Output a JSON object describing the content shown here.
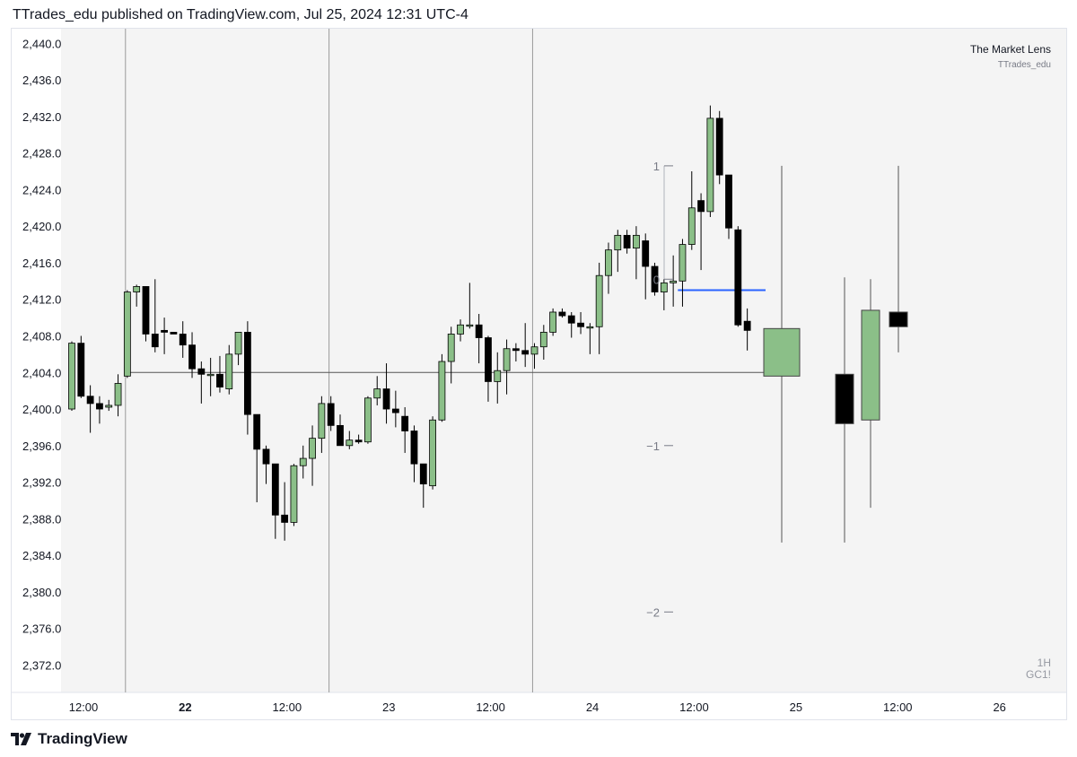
{
  "header": {
    "publisher_line": "TTrades_edu published on TradingView.com, Jul 25, 2024 12:31 UTC-4"
  },
  "watermark": {
    "title": "The Market Lens",
    "author": "TTrades_edu",
    "interval": "1H",
    "symbol": "GC1!"
  },
  "footer": {
    "brand": "TradingView",
    "logo_icon": "tradingview-logo-icon"
  },
  "colors": {
    "bull": "#8bbf88",
    "bear": "#000000",
    "wick": "#000000",
    "blue_line": "#2962ff",
    "pane_bg": "#f4f4f4",
    "grid": "#9a9a9a"
  },
  "chart_data": {
    "type": "candlestick",
    "ylim": [
      2369.0,
      2441.6
    ],
    "y_ticks": [
      2440,
      2436,
      2432,
      2428,
      2424,
      2420,
      2416,
      2412,
      2408,
      2404,
      2400,
      2396,
      2392,
      2388,
      2384,
      2380,
      2376,
      2372
    ],
    "y_tick_labels": [
      "2,440.0",
      "2,436.0",
      "2,432.0",
      "2,428.0",
      "2,424.0",
      "2,420.0",
      "2,416.0",
      "2,412.0",
      "2,408.0",
      "2,404.0",
      "2,400.0",
      "2,396.0",
      "2,392.0",
      "2,388.0",
      "2,384.0",
      "2,380.0",
      "2,376.0",
      "2,372.0"
    ],
    "x_labels": [
      {
        "label": "12:00",
        "idx": 0,
        "bold": false
      },
      {
        "label": "22",
        "idx": 11,
        "bold": true
      },
      {
        "label": "12:00",
        "idx": 22,
        "bold": false
      },
      {
        "label": "23",
        "idx": 33,
        "bold": false
      },
      {
        "label": "12:00",
        "idx": 44,
        "bold": false
      },
      {
        "label": "24",
        "idx": 55,
        "bold": false
      },
      {
        "label": "12:00",
        "idx": 66,
        "bold": false
      },
      {
        "label": "25",
        "idx": 77,
        "bold": false
      },
      {
        "label": "12:00",
        "idx": 88,
        "bold": false
      },
      {
        "label": "26",
        "idx": 99,
        "bold": false
      }
    ],
    "session_separators": [
      5.8,
      27.8,
      49.8
    ],
    "candles": [
      [
        2400.0,
        2407.4,
        2399.8,
        2407.2
      ],
      [
        2407.2,
        2408.0,
        2401.2,
        2401.4
      ],
      [
        2401.4,
        2402.6,
        2397.4,
        2400.6
      ],
      [
        2400.6,
        2401.4,
        2398.4,
        2400.0
      ],
      [
        2400.2,
        2401.0,
        2399.8,
        2400.4
      ],
      [
        2400.4,
        2403.8,
        2399.2,
        2402.8
      ],
      [
        2403.6,
        2413.0,
        2403.4,
        2412.8
      ],
      [
        2412.8,
        2413.6,
        2411.2,
        2413.4
      ],
      [
        2413.4,
        2413.4,
        2407.4,
        2408.2
      ],
      [
        2408.2,
        2414.2,
        2406.2,
        2406.8
      ],
      [
        2408.6,
        2410.0,
        2406.0,
        2408.4
      ],
      [
        2408.4,
        2408.4,
        2408.4,
        2408.2
      ],
      [
        2408.2,
        2409.6,
        2405.6,
        2407.0
      ],
      [
        2407.0,
        2408.4,
        2403.4,
        2404.4
      ],
      [
        2404.4,
        2405.2,
        2400.6,
        2403.8
      ],
      [
        2403.8,
        2405.6,
        2401.4,
        2403.8
      ],
      [
        2403.8,
        2405.8,
        2401.8,
        2402.4
      ],
      [
        2402.2,
        2407.0,
        2401.6,
        2406.0
      ],
      [
        2406.0,
        2408.2,
        2404.8,
        2408.4
      ],
      [
        2408.4,
        2409.6,
        2397.2,
        2399.4
      ],
      [
        2399.4,
        2399.4,
        2389.8,
        2395.6
      ],
      [
        2395.6,
        2396.0,
        2391.8,
        2394.0
      ],
      [
        2394.0,
        2394.0,
        2385.8,
        2388.4
      ],
      [
        2388.4,
        2392.0,
        2385.6,
        2387.6
      ],
      [
        2387.6,
        2394.0,
        2387.2,
        2393.8
      ],
      [
        2393.8,
        2396.0,
        2392.4,
        2394.6
      ],
      [
        2394.6,
        2398.2,
        2391.6,
        2396.8
      ],
      [
        2396.8,
        2401.4,
        2395.2,
        2400.6
      ],
      [
        2400.6,
        2401.4,
        2397.6,
        2398.2
      ],
      [
        2398.2,
        2399.4,
        2396.4,
        2396.0
      ],
      [
        2396.0,
        2397.6,
        2395.6,
        2396.6
      ],
      [
        2396.6,
        2397.2,
        2396.2,
        2396.4
      ],
      [
        2396.4,
        2401.4,
        2396.2,
        2401.2
      ],
      [
        2401.2,
        2403.6,
        2400.4,
        2402.2
      ],
      [
        2402.2,
        2405.0,
        2398.4,
        2400.0
      ],
      [
        2400.0,
        2402.0,
        2398.0,
        2399.6
      ],
      [
        2399.2,
        2400.2,
        2395.2,
        2397.6
      ],
      [
        2397.6,
        2398.2,
        2392.0,
        2394.0
      ],
      [
        2394.0,
        2394.0,
        2389.2,
        2391.8
      ],
      [
        2391.6,
        2399.2,
        2391.2,
        2398.8
      ],
      [
        2398.8,
        2406.0,
        2398.6,
        2405.2
      ],
      [
        2405.2,
        2409.0,
        2402.8,
        2408.2
      ],
      [
        2408.2,
        2409.8,
        2407.4,
        2409.2
      ],
      [
        2409.2,
        2413.8,
        2408.8,
        2409.2
      ],
      [
        2409.2,
        2410.4,
        2405.0,
        2407.8
      ],
      [
        2407.8,
        2408.0,
        2400.8,
        2403.0
      ],
      [
        2403.0,
        2406.2,
        2400.6,
        2404.2
      ],
      [
        2404.2,
        2407.6,
        2401.6,
        2406.6
      ],
      [
        2406.6,
        2407.2,
        2405.2,
        2406.4
      ],
      [
        2406.4,
        2409.4,
        2404.6,
        2406.0
      ],
      [
        2406.0,
        2407.2,
        2404.4,
        2406.8
      ],
      [
        2406.8,
        2409.2,
        2405.4,
        2408.4
      ],
      [
        2408.4,
        2411.0,
        2408.0,
        2410.6
      ],
      [
        2410.6,
        2411.0,
        2410.0,
        2410.2
      ],
      [
        2410.2,
        2410.6,
        2407.8,
        2409.4
      ],
      [
        2409.4,
        2410.6,
        2408.2,
        2409.0
      ],
      [
        2409.0,
        2409.4,
        2406.0,
        2409.0
      ],
      [
        2409.0,
        2416.0,
        2406.0,
        2414.6
      ],
      [
        2414.6,
        2418.2,
        2412.6,
        2417.4
      ],
      [
        2417.4,
        2419.6,
        2415.0,
        2419.0
      ],
      [
        2419.0,
        2419.6,
        2417.0,
        2417.6
      ],
      [
        2417.6,
        2420.0,
        2414.2,
        2419.0
      ],
      [
        2418.4,
        2419.2,
        2412.0,
        2415.6
      ],
      [
        2415.6,
        2416.0,
        2412.4,
        2412.8
      ],
      [
        2412.8,
        2414.2,
        2410.8,
        2413.8
      ],
      [
        2413.8,
        2416.8,
        2411.2,
        2414.0
      ],
      [
        2414.0,
        2418.6,
        2411.2,
        2418.0
      ],
      [
        2418.0,
        2426.0,
        2417.4,
        2422.0
      ],
      [
        2422.8,
        2423.6,
        2415.2,
        2421.6
      ],
      [
        2421.6,
        2433.2,
        2421.0,
        2431.8
      ],
      [
        2431.8,
        2432.6,
        2424.6,
        2425.6
      ],
      [
        2425.6,
        2425.6,
        2418.6,
        2419.8
      ],
      [
        2419.6,
        2420.0,
        2409.0,
        2409.2
      ],
      [
        2409.6,
        2411.0,
        2406.4,
        2408.6
      ]
    ],
    "hourly_level": {
      "value": 2404.0,
      "from_idx": 6,
      "to_x": 838
    },
    "open_level": {
      "value": 2413.0,
      "from_idx": 65.5,
      "to_x": 840
    },
    "higher_tf_candles": [
      {
        "x": 858,
        "w": 40,
        "open": 2403.6,
        "high": 2426.6,
        "low": 2385.4,
        "close": 2408.8
      },
      {
        "x": 928,
        "w": 20,
        "open": 2403.8,
        "high": 2414.4,
        "low": 2385.4,
        "close": 2398.4
      },
      {
        "x": 957,
        "w": 20,
        "open": 2398.8,
        "high": 2414.2,
        "low": 2389.2,
        "close": 2410.8
      },
      {
        "x": 988,
        "w": 20,
        "open": 2410.6,
        "high": 2426.6,
        "low": 2406.2,
        "close": 2409.0
      }
    ],
    "fib_levels": [
      {
        "label": "1",
        "value": 2426.6
      },
      {
        "label": "0",
        "value": 2414.2
      },
      {
        "label": "−1",
        "value": 2396.0
      },
      {
        "label": "−2",
        "value": 2377.8
      }
    ]
  }
}
